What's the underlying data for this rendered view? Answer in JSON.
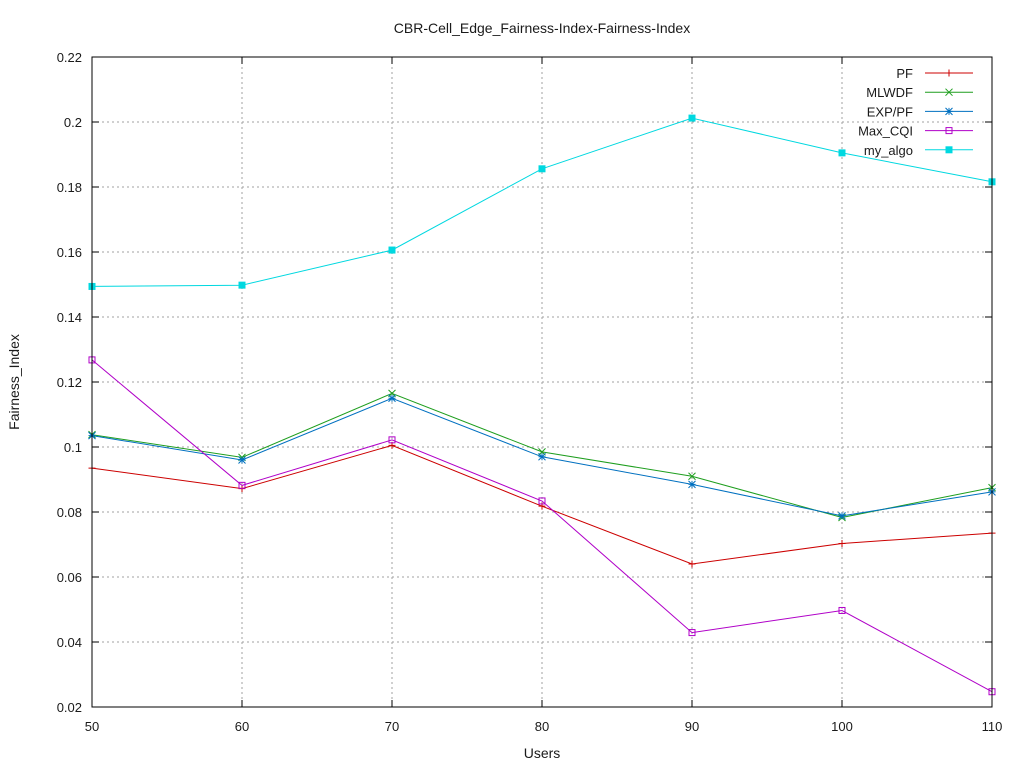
{
  "chart_data": {
    "type": "line",
    "title": "CBR-Cell_Edge_Fairness-Index-Fairness-Index",
    "xlabel": "Users",
    "ylabel": "Fairness_Index",
    "x": [
      50,
      60,
      70,
      80,
      90,
      100,
      110
    ],
    "xlim": [
      50,
      110
    ],
    "ylim": [
      0.02,
      0.22
    ],
    "xticks": [
      "50",
      "60",
      "70",
      "80",
      "90",
      "100",
      "110"
    ],
    "yticks": [
      "0.02",
      "0.04",
      "0.06",
      "0.08",
      "0.1",
      "0.12",
      "0.14",
      "0.16",
      "0.18",
      "0.2",
      "0.22"
    ],
    "grid": true,
    "legend_position": "top-right",
    "series": [
      {
        "name": "PF",
        "color": "#cc0000",
        "marker": "plus",
        "values": [
          0.0935,
          0.0872,
          0.1005,
          0.0818,
          0.064,
          0.0703,
          0.0735
        ]
      },
      {
        "name": "MLWDF",
        "color": "#1e9e1e",
        "marker": "cross",
        "values": [
          0.1038,
          0.0968,
          0.1165,
          0.0985,
          0.091,
          0.0783,
          0.0875
        ]
      },
      {
        "name": "EXP/PF",
        "color": "#0070c0",
        "marker": "star",
        "values": [
          0.1035,
          0.096,
          0.115,
          0.097,
          0.0885,
          0.0788,
          0.0862
        ]
      },
      {
        "name": "Max_CQI",
        "color": "#b000c8",
        "marker": "square-open",
        "values": [
          0.1268,
          0.0882,
          0.1022,
          0.0834,
          0.0429,
          0.0497,
          0.0247
        ]
      },
      {
        "name": "my_algo",
        "color": "#00d8e0",
        "marker": "square-filled",
        "values": [
          0.1494,
          0.1498,
          0.1606,
          0.1856,
          0.2012,
          0.1905,
          0.1816
        ]
      }
    ]
  }
}
